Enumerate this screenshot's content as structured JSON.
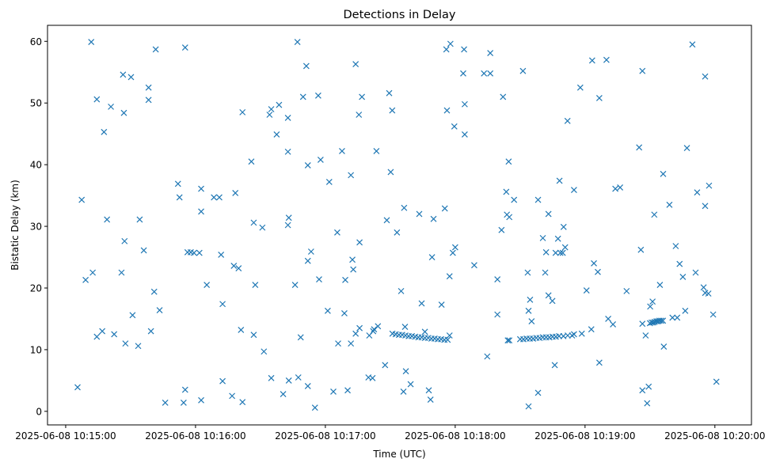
{
  "chart_data": {
    "type": "scatter",
    "title": "Detections in Delay",
    "xlabel": "Time (UTC)",
    "ylabel": "Bistatic Delay (km)",
    "x_units": "seconds since 2025-06-08 10:15:00",
    "xlim": [
      -8.4,
      316.9
    ],
    "ylim": [
      -2.2,
      62.6
    ],
    "grid": false,
    "marker": "x",
    "color": "#1f77b4",
    "x_ticks": [
      {
        "value": 0,
        "label": "2025-06-08 10:15:00"
      },
      {
        "value": 60,
        "label": "2025-06-08 10:16:00"
      },
      {
        "value": 120,
        "label": "2025-06-08 10:17:00"
      },
      {
        "value": 180,
        "label": "2025-06-08 10:18:00"
      },
      {
        "value": 240,
        "label": "2025-06-08 10:19:00"
      },
      {
        "value": 300,
        "label": "2025-06-08 10:20:00"
      }
    ],
    "y_ticks": [
      {
        "value": 0,
        "label": "0"
      },
      {
        "value": 10,
        "label": "10"
      },
      {
        "value": 20,
        "label": "20"
      },
      {
        "value": 30,
        "label": "30"
      },
      {
        "value": 40,
        "label": "40"
      },
      {
        "value": 50,
        "label": "50"
      },
      {
        "value": 60,
        "label": "60"
      }
    ],
    "points": [
      [
        5.5,
        3.9
      ],
      [
        7.4,
        34.3
      ],
      [
        9.2,
        21.3
      ],
      [
        11.8,
        59.9
      ],
      [
        12.5,
        22.5
      ],
      [
        14.4,
        50.6
      ],
      [
        14.4,
        12.1
      ],
      [
        16.9,
        13.0
      ],
      [
        17.7,
        45.3
      ],
      [
        19.1,
        31.1
      ],
      [
        20.9,
        49.4
      ],
      [
        22.4,
        12.5
      ],
      [
        25.8,
        22.5
      ],
      [
        26.5,
        54.6
      ],
      [
        26.9,
        48.4
      ],
      [
        27.2,
        27.6
      ],
      [
        27.6,
        11.0
      ],
      [
        30.2,
        54.2
      ],
      [
        30.9,
        15.6
      ],
      [
        33.5,
        10.6
      ],
      [
        34.2,
        31.1
      ],
      [
        36.1,
        26.1
      ],
      [
        38.3,
        52.5
      ],
      [
        38.3,
        50.5
      ],
      [
        39.4,
        13.0
      ],
      [
        40.9,
        19.4
      ],
      [
        41.6,
        58.7
      ],
      [
        43.4,
        16.4
      ],
      [
        46.0,
        1.4
      ],
      [
        51.9,
        36.9
      ],
      [
        52.6,
        34.7
      ],
      [
        54.5,
        1.4
      ],
      [
        55.2,
        59.0
      ],
      [
        55.2,
        3.5
      ],
      [
        56.3,
        25.8
      ],
      [
        57.8,
        25.8
      ],
      [
        59.3,
        25.7
      ],
      [
        61.8,
        25.7
      ],
      [
        62.6,
        36.1
      ],
      [
        62.6,
        32.4
      ],
      [
        62.6,
        1.8
      ],
      [
        65.2,
        20.5
      ],
      [
        68.5,
        34.7
      ],
      [
        71.0,
        34.7
      ],
      [
        71.8,
        25.4
      ],
      [
        72.5,
        17.4
      ],
      [
        72.5,
        4.9
      ],
      [
        76.9,
        2.5
      ],
      [
        77.7,
        23.6
      ],
      [
        78.4,
        35.4
      ],
      [
        79.9,
        23.2
      ],
      [
        81.0,
        13.2
      ],
      [
        81.7,
        1.5
      ],
      [
        81.7,
        48.5
      ],
      [
        85.8,
        40.5
      ],
      [
        86.9,
        12.4
      ],
      [
        86.9,
        30.6
      ],
      [
        87.6,
        20.5
      ],
      [
        90.9,
        29.8
      ],
      [
        91.6,
        9.7
      ],
      [
        94.2,
        48.1
      ],
      [
        95.0,
        49.0
      ],
      [
        95.0,
        5.4
      ],
      [
        97.5,
        44.9
      ],
      [
        98.6,
        49.7
      ],
      [
        100.5,
        2.8
      ],
      [
        102.7,
        47.6
      ],
      [
        102.7,
        42.1
      ],
      [
        102.7,
        30.2
      ],
      [
        103.1,
        31.4
      ],
      [
        103.1,
        5.0
      ],
      [
        106.0,
        20.5
      ],
      [
        107.1,
        59.9
      ],
      [
        107.5,
        5.5
      ],
      [
        108.6,
        12.0
      ],
      [
        109.7,
        51.0
      ],
      [
        111.2,
        56.0
      ],
      [
        111.9,
        39.9
      ],
      [
        111.9,
        24.4
      ],
      [
        111.9,
        4.1
      ],
      [
        113.4,
        25.9
      ],
      [
        115.2,
        0.6
      ],
      [
        116.7,
        51.2
      ],
      [
        117.1,
        21.4
      ],
      [
        117.8,
        40.8
      ],
      [
        121.1,
        16.3
      ],
      [
        121.8,
        37.2
      ],
      [
        123.7,
        3.2
      ],
      [
        125.5,
        29.0
      ],
      [
        125.9,
        11.0
      ],
      [
        127.7,
        42.2
      ],
      [
        128.8,
        15.9
      ],
      [
        129.2,
        21.3
      ],
      [
        130.3,
        3.4
      ],
      [
        131.8,
        11.0
      ],
      [
        131.8,
        38.3
      ],
      [
        132.5,
        24.6
      ],
      [
        132.9,
        23.0
      ],
      [
        134.0,
        56.3
      ],
      [
        134.0,
        12.6
      ],
      [
        135.5,
        48.1
      ],
      [
        135.8,
        27.4
      ],
      [
        135.8,
        13.5
      ],
      [
        136.9,
        51.0
      ],
      [
        139.9,
        5.5
      ],
      [
        140.3,
        12.3
      ],
      [
        141.8,
        5.4
      ],
      [
        142.1,
        13.0
      ],
      [
        142.5,
        13.3
      ],
      [
        143.6,
        42.2
      ],
      [
        144.3,
        13.8
      ],
      [
        147.6,
        7.5
      ],
      [
        148.4,
        31.0
      ],
      [
        149.5,
        51.6
      ],
      [
        150.2,
        38.8
      ],
      [
        150.9,
        48.8
      ],
      [
        153.1,
        29.0
      ],
      [
        155.0,
        19.5
      ],
      [
        156.4,
        33.0
      ],
      [
        156.8,
        13.7
      ],
      [
        156.1,
        3.2
      ],
      [
        157.2,
        6.5
      ],
      [
        159.4,
        4.4
      ],
      [
        163.4,
        32.0
      ],
      [
        164.5,
        17.5
      ],
      [
        166.0,
        12.9
      ],
      [
        167.8,
        3.4
      ],
      [
        168.6,
        1.9
      ],
      [
        169.3,
        25.0
      ],
      [
        170.0,
        31.2
      ],
      [
        173.7,
        17.3
      ],
      [
        175.2,
        32.9
      ],
      [
        176.2,
        48.8
      ],
      [
        175.9,
        58.7
      ],
      [
        177.8,
        59.6
      ],
      [
        177.4,
        21.9
      ],
      [
        177.4,
        12.3
      ],
      [
        178.9,
        25.7
      ],
      [
        179.6,
        46.2
      ],
      [
        180.0,
        26.6
      ],
      [
        183.7,
        54.8
      ],
      [
        184.1,
        58.7
      ],
      [
        184.4,
        49.8
      ],
      [
        184.4,
        44.9
      ],
      [
        188.8,
        23.7
      ],
      [
        193.3,
        54.8
      ],
      [
        194.8,
        8.9
      ],
      [
        196.2,
        54.8
      ],
      [
        196.2,
        58.1
      ],
      [
        199.5,
        21.4
      ],
      [
        199.5,
        15.7
      ],
      [
        201.4,
        29.4
      ],
      [
        202.1,
        51.0
      ],
      [
        203.6,
        35.6
      ],
      [
        203.9,
        31.9
      ],
      [
        204.7,
        40.5
      ],
      [
        205.0,
        31.5
      ],
      [
        204.3,
        11.5
      ],
      [
        205.0,
        11.5
      ],
      [
        207.2,
        34.3
      ],
      [
        211.3,
        55.2
      ],
      [
        213.5,
        22.5
      ],
      [
        213.9,
        16.3
      ],
      [
        214.6,
        18.1
      ],
      [
        215.3,
        14.6
      ],
      [
        213.9,
        0.8
      ],
      [
        218.3,
        3.0
      ],
      [
        218.3,
        34.3
      ],
      [
        220.5,
        28.1
      ],
      [
        221.6,
        22.5
      ],
      [
        222.0,
        25.8
      ],
      [
        223.1,
        32.0
      ],
      [
        223.1,
        18.8
      ],
      [
        224.9,
        17.9
      ],
      [
        226.0,
        7.5
      ],
      [
        226.4,
        25.7
      ],
      [
        227.5,
        28.0
      ],
      [
        228.2,
        37.4
      ],
      [
        228.6,
        25.7
      ],
      [
        229.7,
        25.7
      ],
      [
        230.1,
        29.9
      ],
      [
        230.8,
        26.6
      ],
      [
        231.9,
        47.1
      ],
      [
        234.9,
        35.9
      ],
      [
        234.9,
        12.5
      ],
      [
        237.8,
        52.5
      ],
      [
        238.5,
        12.6
      ],
      [
        240.7,
        19.6
      ],
      [
        242.9,
        13.3
      ],
      [
        243.3,
        56.9
      ],
      [
        244.1,
        24.0
      ],
      [
        245.9,
        22.6
      ],
      [
        246.6,
        50.8
      ],
      [
        246.6,
        7.9
      ],
      [
        249.9,
        57.0
      ],
      [
        250.7,
        15.0
      ],
      [
        252.9,
        14.1
      ],
      [
        254.0,
        36.1
      ],
      [
        256.2,
        36.3
      ],
      [
        259.2,
        19.5
      ],
      [
        265.0,
        42.8
      ],
      [
        265.8,
        26.2
      ],
      [
        266.5,
        55.2
      ],
      [
        266.5,
        3.4
      ],
      [
        266.5,
        14.2
      ],
      [
        268.0,
        12.3
      ],
      [
        268.7,
        1.3
      ],
      [
        270.0,
        14.3
      ],
      [
        270.8,
        14.4
      ],
      [
        271.5,
        14.4
      ],
      [
        272.2,
        14.5
      ],
      [
        273.0,
        14.6
      ],
      [
        273.7,
        14.6
      ],
      [
        274.4,
        14.7
      ],
      [
        275.2,
        14.7
      ],
      [
        276.0,
        14.7
      ],
      [
        269.4,
        4.0
      ],
      [
        270.1,
        17.0
      ],
      [
        271.2,
        17.8
      ],
      [
        272.0,
        31.9
      ],
      [
        274.6,
        20.5
      ],
      [
        276.1,
        38.5
      ],
      [
        276.4,
        10.5
      ],
      [
        279.0,
        33.5
      ],
      [
        280.4,
        15.2
      ],
      [
        281.9,
        26.8
      ],
      [
        282.6,
        15.2
      ],
      [
        283.7,
        23.9
      ],
      [
        285.2,
        21.8
      ],
      [
        286.3,
        16.3
      ],
      [
        287.1,
        42.7
      ],
      [
        289.6,
        59.5
      ],
      [
        291.1,
        22.5
      ],
      [
        291.8,
        35.5
      ],
      [
        294.8,
        20.1
      ],
      [
        295.5,
        54.3
      ],
      [
        295.5,
        33.3
      ],
      [
        295.5,
        19.2
      ],
      [
        297.0,
        19.1
      ],
      [
        297.3,
        36.6
      ],
      [
        299.2,
        15.7
      ],
      [
        300.7,
        4.8
      ],
      [
        151,
        12.6
      ],
      [
        152.5,
        12.5
      ],
      [
        154,
        12.4
      ],
      [
        155.5,
        12.4
      ],
      [
        157,
        12.3
      ],
      [
        158.5,
        12.2
      ],
      [
        160,
        12.2
      ],
      [
        161.5,
        12.1
      ],
      [
        163,
        12.0
      ],
      [
        164.5,
        12.0
      ],
      [
        166,
        11.9
      ],
      [
        167.5,
        11.9
      ],
      [
        169,
        11.8
      ],
      [
        170.5,
        11.8
      ],
      [
        172,
        11.7
      ],
      [
        173.5,
        11.7
      ],
      [
        175,
        11.6
      ],
      [
        176.5,
        11.6
      ],
      [
        210,
        11.7
      ],
      [
        211.5,
        11.7
      ],
      [
        213,
        11.8
      ],
      [
        214.5,
        11.8
      ],
      [
        216,
        11.8
      ],
      [
        217.5,
        11.9
      ],
      [
        219,
        11.9
      ],
      [
        220.5,
        12.0
      ],
      [
        222,
        12.0
      ],
      [
        223.5,
        12.0
      ],
      [
        225,
        12.1
      ],
      [
        226.5,
        12.1
      ],
      [
        228,
        12.2
      ],
      [
        230,
        12.2
      ],
      [
        232,
        12.3
      ],
      [
        234,
        12.3
      ]
    ]
  }
}
